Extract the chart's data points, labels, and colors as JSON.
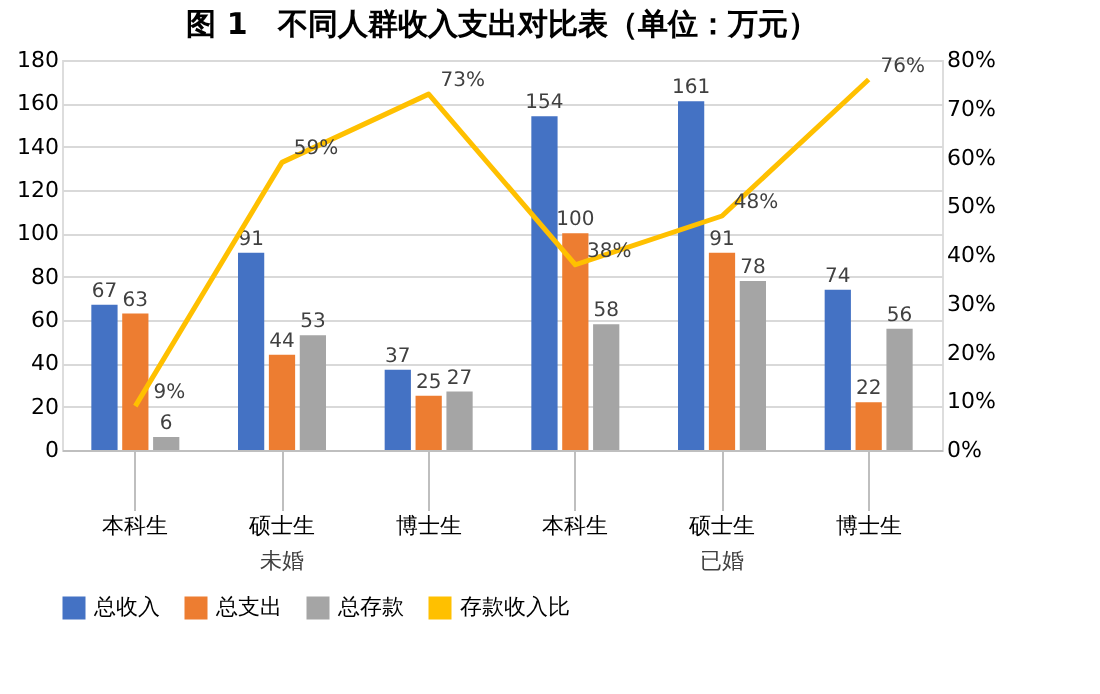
{
  "chart_data": {
    "type": "bar",
    "title": "图 1　不同人群收入支出对比表（单位：万元）",
    "categories": [
      "本科生",
      "硕士生",
      "博士生",
      "本科生",
      "硕士生",
      "博士生"
    ],
    "annotations": [
      "未婚",
      "已婚"
    ],
    "series": [
      {
        "name": "总收入",
        "color": "#4472c4",
        "values": [
          67,
          91,
          37,
          154,
          161,
          74
        ]
      },
      {
        "name": "总支出",
        "color": "#ed7d31",
        "values": [
          63,
          44,
          25,
          100,
          91,
          22
        ]
      },
      {
        "name": "总存款",
        "color": "#a5a5a5",
        "values": [
          6,
          53,
          27,
          58,
          78,
          56
        ]
      },
      {
        "name": "存款收入比",
        "type": "line",
        "axis": "y2",
        "color": "#ffc000",
        "values": [
          9,
          59,
          73,
          38,
          48,
          76
        ],
        "value_labels": [
          "9%",
          "59%",
          "73%",
          "38%",
          "48%",
          "76%"
        ]
      }
    ],
    "data_labels": true,
    "ylim": [
      0,
      180
    ],
    "yticks": [
      0,
      20,
      40,
      60,
      80,
      100,
      120,
      140,
      160,
      180
    ],
    "y2lim": [
      0,
      80
    ],
    "y2ticks": [
      {
        "value": 0,
        "label": "0%"
      },
      {
        "value": 10,
        "label": "10%"
      },
      {
        "value": 20,
        "label": "20%"
      },
      {
        "value": 30,
        "label": "30%"
      },
      {
        "value": 40,
        "label": "40%"
      },
      {
        "value": 50,
        "label": "50%"
      },
      {
        "value": 60,
        "label": "60%"
      },
      {
        "value": 70,
        "label": "70%"
      },
      {
        "value": 80,
        "label": "80%"
      }
    ],
    "grid": "y",
    "legend": "bottom"
  }
}
